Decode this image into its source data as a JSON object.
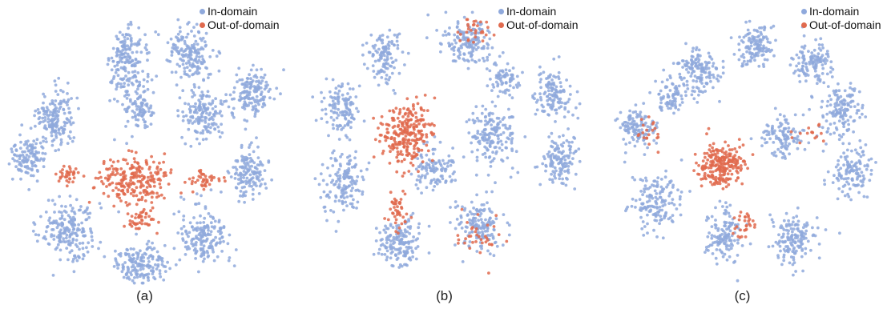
{
  "chart_data": [
    {
      "type": "scatter",
      "caption": "(a)",
      "legend": {
        "placement": "top-right"
      },
      "series": [
        {
          "name": "In-domain",
          "color": "#8FA9DC",
          "marker": "dot"
        },
        {
          "name": "Out-of-domain",
          "color": "#E06A4E",
          "marker": "dot"
        }
      ],
      "clusters": [
        {
          "series": "In-domain",
          "center": [
            0.17,
            0.4
          ],
          "spread": [
            0.06,
            0.09
          ],
          "count": 170
        },
        {
          "series": "In-domain",
          "center": [
            0.43,
            0.18
          ],
          "spread": [
            0.06,
            0.1
          ],
          "count": 170
        },
        {
          "series": "In-domain",
          "center": [
            0.65,
            0.16
          ],
          "spread": [
            0.07,
            0.1
          ],
          "count": 170
        },
        {
          "series": "In-domain",
          "center": [
            0.87,
            0.31
          ],
          "spread": [
            0.07,
            0.08
          ],
          "count": 150
        },
        {
          "series": "In-domain",
          "center": [
            0.08,
            0.53
          ],
          "spread": [
            0.06,
            0.07
          ],
          "count": 120
        },
        {
          "series": "In-domain",
          "center": [
            0.47,
            0.34
          ],
          "spread": [
            0.05,
            0.09
          ],
          "count": 110
        },
        {
          "series": "In-domain",
          "center": [
            0.7,
            0.38
          ],
          "spread": [
            0.07,
            0.08
          ],
          "count": 150
        },
        {
          "series": "In-domain",
          "center": [
            0.86,
            0.6
          ],
          "spread": [
            0.06,
            0.09
          ],
          "count": 140
        },
        {
          "series": "In-domain",
          "center": [
            0.22,
            0.8
          ],
          "spread": [
            0.09,
            0.09
          ],
          "count": 200
        },
        {
          "series": "In-domain",
          "center": [
            0.48,
            0.92
          ],
          "spread": [
            0.09,
            0.06
          ],
          "count": 170
        },
        {
          "series": "In-domain",
          "center": [
            0.7,
            0.82
          ],
          "spread": [
            0.08,
            0.1
          ],
          "count": 180
        },
        {
          "series": "Out-of-domain",
          "center": [
            0.45,
            0.62
          ],
          "spread": [
            0.12,
            0.08
          ],
          "count": 230
        },
        {
          "series": "Out-of-domain",
          "center": [
            0.22,
            0.6
          ],
          "spread": [
            0.04,
            0.03
          ],
          "count": 35
        },
        {
          "series": "Out-of-domain",
          "center": [
            0.7,
            0.62
          ],
          "spread": [
            0.04,
            0.03
          ],
          "count": 40
        },
        {
          "series": "Out-of-domain",
          "center": [
            0.47,
            0.76
          ],
          "spread": [
            0.05,
            0.04
          ],
          "count": 45
        }
      ]
    },
    {
      "type": "scatter",
      "caption": "(b)",
      "legend": {
        "placement": "top-right"
      },
      "series": [
        {
          "name": "In-domain",
          "color": "#8FA9DC",
          "marker": "dot"
        },
        {
          "name": "Out-of-domain",
          "color": "#E06A4E",
          "marker": "dot"
        }
      ],
      "clusters": [
        {
          "series": "In-domain",
          "center": [
            0.58,
            0.12
          ],
          "spread": [
            0.08,
            0.08
          ],
          "count": 160
        },
        {
          "series": "In-domain",
          "center": [
            0.28,
            0.17
          ],
          "spread": [
            0.06,
            0.09
          ],
          "count": 120
        },
        {
          "series": "In-domain",
          "center": [
            0.13,
            0.36
          ],
          "spread": [
            0.06,
            0.08
          ],
          "count": 120
        },
        {
          "series": "In-domain",
          "center": [
            0.13,
            0.63
          ],
          "spread": [
            0.07,
            0.1
          ],
          "count": 150
        },
        {
          "series": "In-domain",
          "center": [
            0.88,
            0.3
          ],
          "spread": [
            0.06,
            0.08
          ],
          "count": 130
        },
        {
          "series": "In-domain",
          "center": [
            0.9,
            0.55
          ],
          "spread": [
            0.06,
            0.08
          ],
          "count": 130
        },
        {
          "series": "In-domain",
          "center": [
            0.67,
            0.45
          ],
          "spread": [
            0.08,
            0.1
          ],
          "count": 170
        },
        {
          "series": "In-domain",
          "center": [
            0.34,
            0.84
          ],
          "spread": [
            0.08,
            0.08
          ],
          "count": 160
        },
        {
          "series": "In-domain",
          "center": [
            0.62,
            0.78
          ],
          "spread": [
            0.07,
            0.09
          ],
          "count": 150
        },
        {
          "series": "In-domain",
          "center": [
            0.45,
            0.58
          ],
          "spread": [
            0.07,
            0.07
          ],
          "count": 110
        },
        {
          "series": "In-domain",
          "center": [
            0.71,
            0.25
          ],
          "spread": [
            0.05,
            0.05
          ],
          "count": 70
        },
        {
          "series": "Out-of-domain",
          "center": [
            0.36,
            0.45
          ],
          "spread": [
            0.08,
            0.1
          ],
          "count": 260
        },
        {
          "series": "Out-of-domain",
          "center": [
            0.33,
            0.74
          ],
          "spread": [
            0.03,
            0.07
          ],
          "count": 45
        },
        {
          "series": "Out-of-domain",
          "center": [
            0.6,
            0.09
          ],
          "spread": [
            0.07,
            0.05
          ],
          "count": 30
        },
        {
          "series": "Out-of-domain",
          "center": [
            0.62,
            0.82
          ],
          "spread": [
            0.08,
            0.06
          ],
          "count": 35
        }
      ]
    },
    {
      "type": "scatter",
      "caption": "(c)",
      "legend": {
        "placement": "top-right"
      },
      "series": [
        {
          "name": "In-domain",
          "color": "#8FA9DC",
          "marker": "dot"
        },
        {
          "name": "Out-of-domain",
          "color": "#E06A4E",
          "marker": "dot"
        }
      ],
      "clusters": [
        {
          "series": "In-domain",
          "center": [
            0.36,
            0.22
          ],
          "spread": [
            0.07,
            0.08
          ],
          "count": 150
        },
        {
          "series": "In-domain",
          "center": [
            0.56,
            0.13
          ],
          "spread": [
            0.06,
            0.07
          ],
          "count": 130
        },
        {
          "series": "In-domain",
          "center": [
            0.76,
            0.19
          ],
          "spread": [
            0.06,
            0.07
          ],
          "count": 120
        },
        {
          "series": "In-domain",
          "center": [
            0.86,
            0.36
          ],
          "spread": [
            0.07,
            0.09
          ],
          "count": 140
        },
        {
          "series": "In-domain",
          "center": [
            0.89,
            0.59
          ],
          "spread": [
            0.07,
            0.08
          ],
          "count": 130
        },
        {
          "series": "In-domain",
          "center": [
            0.7,
            0.83
          ],
          "spread": [
            0.07,
            0.09
          ],
          "count": 150
        },
        {
          "series": "In-domain",
          "center": [
            0.45,
            0.82
          ],
          "spread": [
            0.06,
            0.09
          ],
          "count": 130
        },
        {
          "series": "In-domain",
          "center": [
            0.2,
            0.7
          ],
          "spread": [
            0.08,
            0.09
          ],
          "count": 150
        },
        {
          "series": "In-domain",
          "center": [
            0.14,
            0.43
          ],
          "spread": [
            0.06,
            0.07
          ],
          "count": 120
        },
        {
          "series": "In-domain",
          "center": [
            0.66,
            0.46
          ],
          "spread": [
            0.07,
            0.07
          ],
          "count": 110
        },
        {
          "series": "In-domain",
          "center": [
            0.26,
            0.31
          ],
          "spread": [
            0.05,
            0.06
          ],
          "count": 80
        },
        {
          "series": "Out-of-domain",
          "center": [
            0.44,
            0.56
          ],
          "spread": [
            0.07,
            0.07
          ],
          "count": 240
        },
        {
          "series": "Out-of-domain",
          "center": [
            0.52,
            0.78
          ],
          "spread": [
            0.03,
            0.06
          ],
          "count": 30
        },
        {
          "series": "Out-of-domain",
          "center": [
            0.18,
            0.45
          ],
          "spread": [
            0.05,
            0.05
          ],
          "count": 20
        },
        {
          "series": "Out-of-domain",
          "center": [
            0.75,
            0.45
          ],
          "spread": [
            0.05,
            0.04
          ],
          "count": 15
        }
      ]
    }
  ]
}
